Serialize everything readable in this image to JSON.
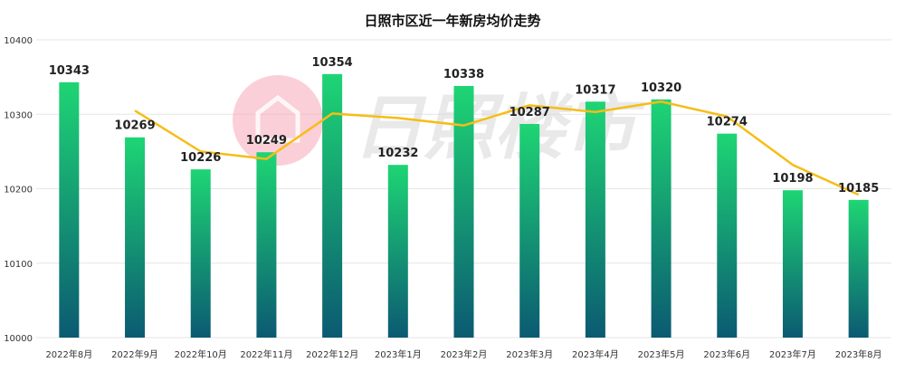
{
  "chart_data": {
    "type": "bar",
    "title": "日照市区近一年新房均价走势",
    "categories": [
      "2022年8月",
      "2022年9月",
      "2022年10月",
      "2022年11月",
      "2022年12月",
      "2023年1月",
      "2023年2月",
      "2023年3月",
      "2023年4月",
      "2023年5月",
      "2023年6月",
      "2023年7月",
      "2023年8月"
    ],
    "values": [
      10343,
      10269,
      10226,
      10249,
      10354,
      10232,
      10338,
      10287,
      10317,
      10320,
      10274,
      10198,
      10185
    ],
    "trend_line": [
      null,
      10305,
      10250,
      10240,
      10301,
      10295,
      10285,
      10312,
      10303,
      10317,
      10297,
      10232,
      10192
    ],
    "ylim": [
      10000,
      10400
    ],
    "yticks": [
      10000,
      10100,
      10200,
      10300,
      10400
    ],
    "grid": true,
    "legend": "none",
    "colors": {
      "bar_top": "#1ed574",
      "bar_bottom": "#0b5a72",
      "line": "#f6bd16",
      "grid": "#e6e6e6"
    },
    "watermark": "日照楼市"
  }
}
